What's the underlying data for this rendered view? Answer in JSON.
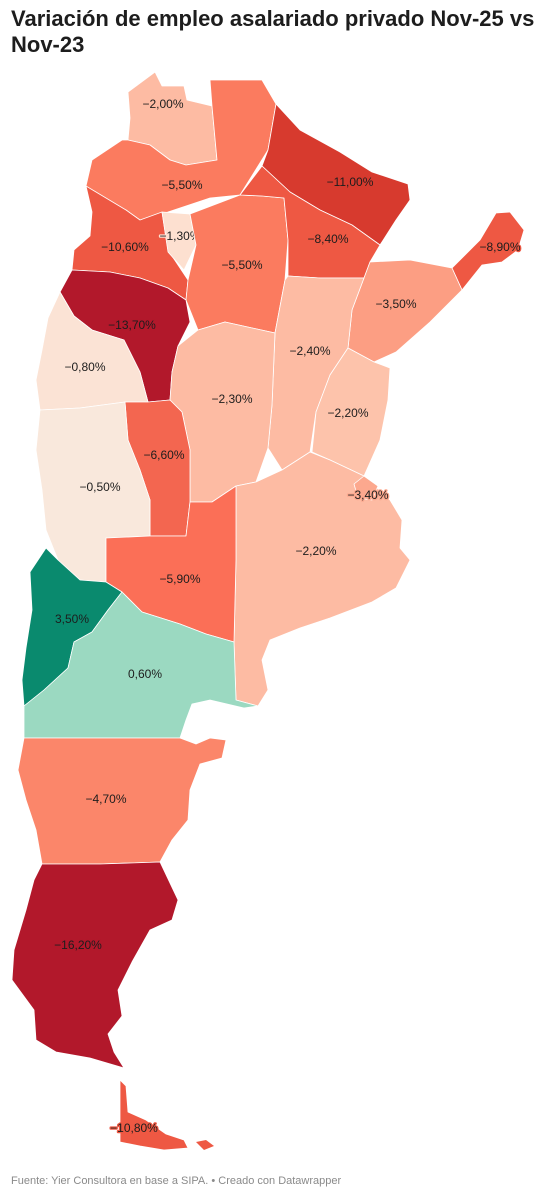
{
  "title": "Variación de empleo asalariado privado Nov-25 vs Nov-23",
  "footer": "Fuente: Yier Consultora en base a SIPA. • Creado con Datawrapper",
  "colors": {
    "background": "#ffffff",
    "deep_red": "#b2182b",
    "red": "#d73a2e",
    "red_mid": "#ee5843",
    "salmon": "#fb7b5f",
    "salmon_light": "#fc9e83",
    "peach": "#fdbba3",
    "peach_light": "#fde0d0",
    "cream": "#f9e8dc",
    "teal_dark": "#0a8a6e",
    "teal_light": "#9bd9c1"
  },
  "regions": [
    {
      "label": "−2,00%",
      "value": -2.0,
      "color": "#fdbba3"
    },
    {
      "label": "−5,50%",
      "value": -5.5,
      "color": "#fb7b5f"
    },
    {
      "label": "−11,00%",
      "value": -11.0,
      "color": "#d73a2e"
    },
    {
      "label": "−10,60%",
      "value": -10.6,
      "color": "#ee5843"
    },
    {
      "label": "−1,30%",
      "value": -1.3,
      "color": "#fde0d0"
    },
    {
      "label": "−5,50%",
      "value": -5.5,
      "color": "#fb7b5f"
    },
    {
      "label": "−8,40%",
      "value": -8.4,
      "color": "#ee5843"
    },
    {
      "label": "−8,90%",
      "value": -8.9,
      "color": "#ee5843"
    },
    {
      "label": "−13,70%",
      "value": -13.7,
      "color": "#b2182b"
    },
    {
      "label": "−3,50%",
      "value": -3.5,
      "color": "#fc9e83"
    },
    {
      "label": "−2,40%",
      "value": -2.4,
      "color": "#fdbba3"
    },
    {
      "label": "−0,80%",
      "value": -0.8,
      "color": "#fbe3d5"
    },
    {
      "label": "−2,30%",
      "value": -2.3,
      "color": "#fdbba3"
    },
    {
      "label": "−2,20%",
      "value": -2.2,
      "color": "#fdc3ab"
    },
    {
      "label": "−6,60%",
      "value": -6.6,
      "color": "#f36650"
    },
    {
      "label": "−0,50%",
      "value": -0.5,
      "color": "#f9e8dc"
    },
    {
      "label": "−2,20%",
      "value": -2.2,
      "color": "#fdbba3"
    },
    {
      "label": "−3,40%",
      "value": -3.4,
      "color": "#fca88e"
    },
    {
      "label": "−5,90%",
      "value": -5.9,
      "color": "#fb6f57"
    },
    {
      "label": "3,50%",
      "value": 3.5,
      "color": "#0a8a6e"
    },
    {
      "label": "0,60%",
      "value": 0.6,
      "color": "#9bd9c1"
    },
    {
      "label": "−4,70%",
      "value": -4.7,
      "color": "#fb866a"
    },
    {
      "label": "−16,20%",
      "value": -16.2,
      "color": "#b2182b"
    },
    {
      "label": "−10,80%",
      "value": -10.8,
      "color": "#ee5843"
    }
  ]
}
